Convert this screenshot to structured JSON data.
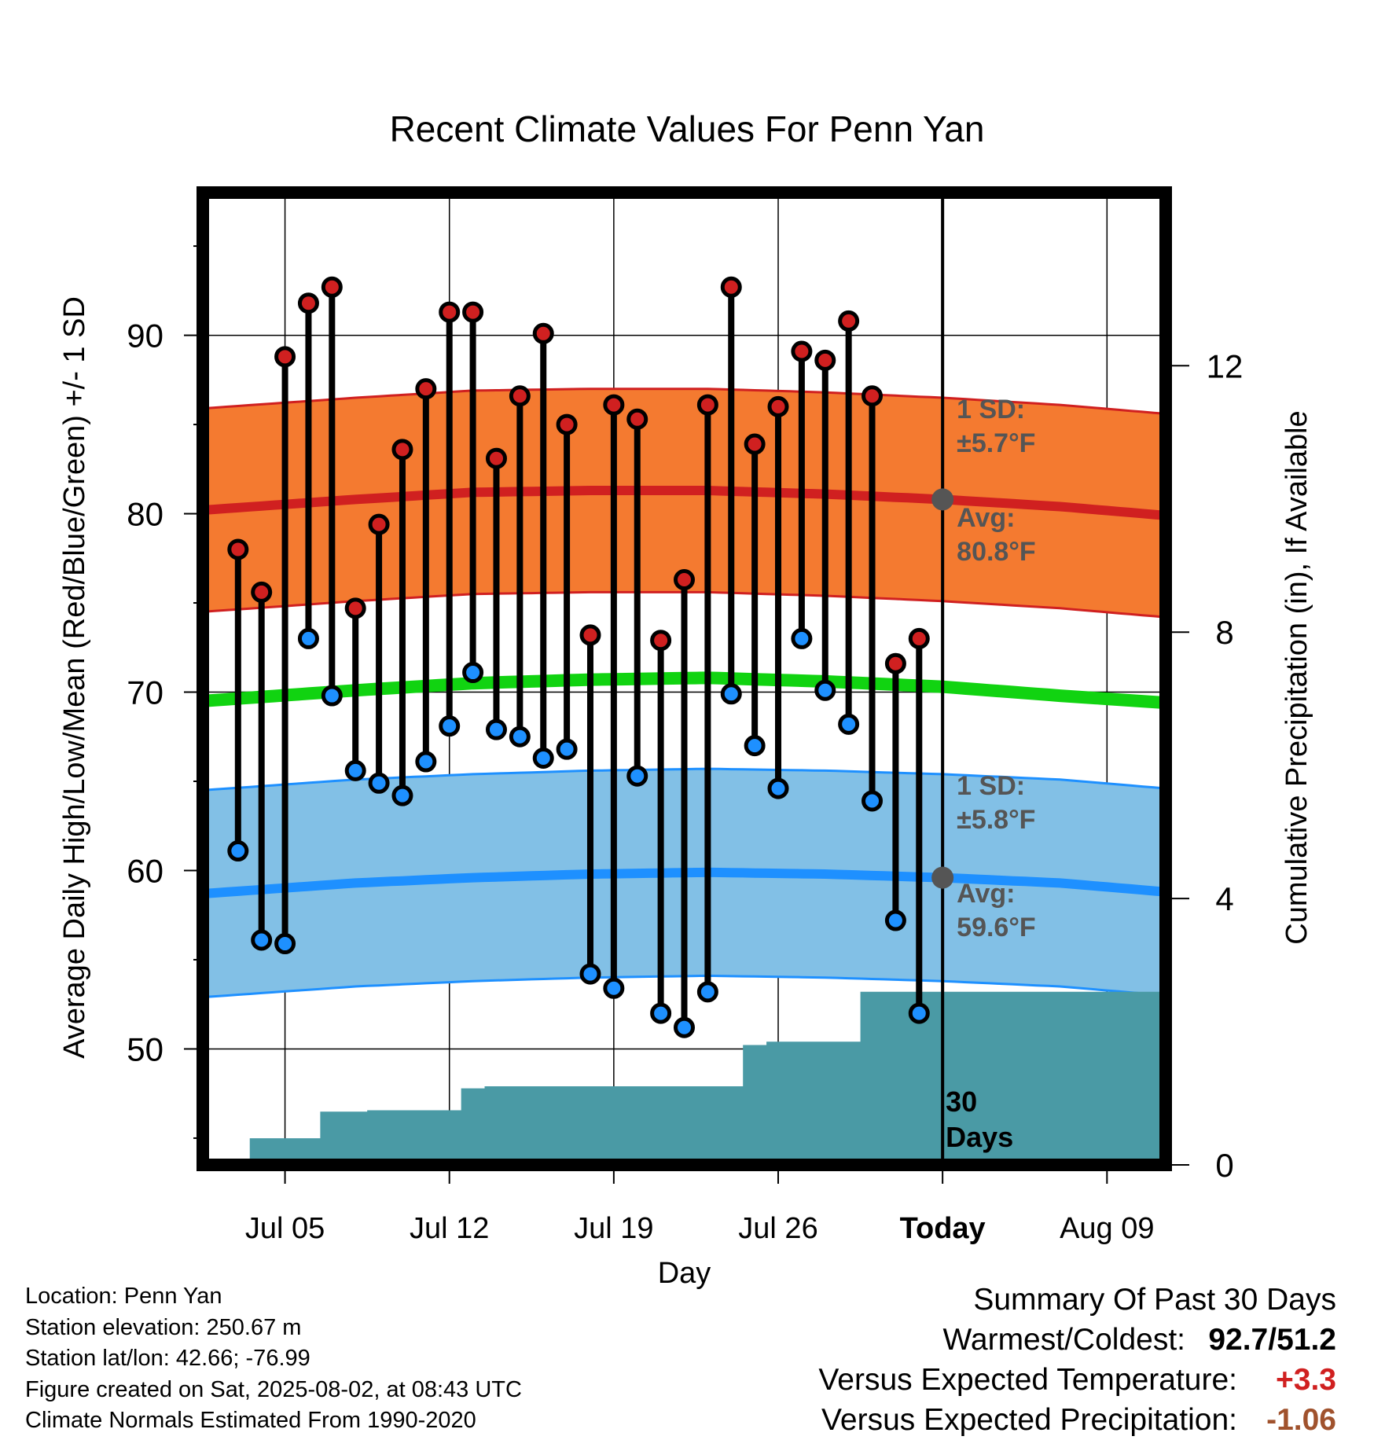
{
  "chart_data": {
    "type": "line",
    "title": "Recent Climate Values For Penn Yan",
    "xlabel": "Day",
    "ylabel": "Average Daily High/Low/Mean (Red/Blue/Green) +/- 1 SD",
    "y2label": "Cumulative Precipitation (in), If Available",
    "x_ticks": [
      "Jul 05",
      "Jul 12",
      "Jul 19",
      "Jul 26",
      "Today",
      "Aug 09"
    ],
    "y_ticks": [
      50,
      60,
      70,
      80,
      90
    ],
    "y2_ticks": [
      0,
      4,
      8,
      12
    ],
    "ylim": [
      43.5,
      98
    ],
    "y2lim": [
      0,
      14.6
    ],
    "x_range_days": [
      -31.5,
      9.5
    ],
    "grid": true,
    "today_marker": true,
    "days_from_today": [
      -30,
      -29,
      -28,
      -27,
      -26,
      -25,
      -24,
      -23,
      -22,
      -21,
      -20,
      -19,
      -18,
      -17,
      -16,
      -15,
      -14,
      -13,
      -12,
      -11,
      -10,
      -9,
      -8,
      -7,
      -6,
      -5,
      -4,
      -3,
      -2,
      -1
    ],
    "series": [
      {
        "name": "High",
        "color": "#d02020",
        "values": [
          78.0,
          75.6,
          88.8,
          91.8,
          92.7,
          74.7,
          79.4,
          83.6,
          87.0,
          91.3,
          91.3,
          83.1,
          86.6,
          90.1,
          85.0,
          73.2,
          86.1,
          85.3,
          72.9,
          76.3,
          86.1,
          92.7,
          83.9,
          86.0,
          89.1,
          88.6,
          90.8,
          86.6,
          71.6,
          73.0
        ]
      },
      {
        "name": "Low",
        "color": "#1e90ff",
        "values": [
          61.1,
          56.1,
          55.9,
          73.0,
          69.8,
          65.6,
          64.9,
          64.2,
          66.1,
          68.1,
          71.1,
          67.9,
          67.5,
          66.3,
          66.8,
          54.2,
          53.4,
          65.3,
          52.0,
          51.2,
          53.2,
          69.9,
          67.0,
          64.6,
          73.0,
          70.1,
          68.2,
          63.9,
          57.2,
          52.0
        ]
      },
      {
        "name": "Cumulative Precipitation",
        "color": "#4a9aa5",
        "values": [
          0.0,
          0.4,
          0.4,
          0.4,
          0.8,
          0.8,
          0.82,
          0.82,
          0.82,
          0.82,
          1.15,
          1.18,
          1.18,
          1.18,
          1.18,
          1.18,
          1.18,
          1.18,
          1.18,
          1.18,
          1.18,
          1.18,
          1.8,
          1.85,
          1.85,
          1.85,
          1.85,
          2.6,
          2.6,
          2.6
        ]
      }
    ],
    "normals": {
      "days_from_today": [
        -31.5,
        -25,
        -20,
        -15,
        -10,
        -5,
        0,
        5,
        9.5
      ],
      "high_mean": [
        80.2,
        80.8,
        81.2,
        81.3,
        81.3,
        81.1,
        80.8,
        80.4,
        79.9
      ],
      "high_sd": 5.7,
      "low_mean": [
        58.7,
        59.3,
        59.6,
        59.8,
        59.9,
        59.8,
        59.6,
        59.3,
        58.8
      ],
      "low_sd": 5.8,
      "mean": [
        69.5,
        70.1,
        70.5,
        70.7,
        70.8,
        70.6,
        70.3,
        69.8,
        69.4
      ],
      "colors": {
        "high_band": "#f47a30",
        "high_line": "#d02020",
        "low_band": "#82c0e6",
        "low_line": "#1e90ff",
        "mean_line": "#11d311",
        "precip": "#4a9aa5"
      }
    },
    "annotations": {
      "high_sd_label": "1 SD:",
      "high_sd_value": "±5.7°F",
      "high_avg_label": "Avg:",
      "high_avg_value": "80.8°F",
      "low_sd_label": "1 SD:",
      "low_sd_value": "±5.8°F",
      "low_avg_label": "Avg:",
      "low_avg_value": "59.6°F",
      "precip_label_1": "30",
      "precip_label_2": "Days",
      "today_high_avg": 80.8,
      "today_low_avg": 59.6
    }
  },
  "info": {
    "location": "Location: Penn Yan",
    "elevation": "Station elevation: 250.67 m",
    "latlon": "Station lat/lon: 42.66; -76.99",
    "created": "Figure created on Sat, 2025-08-02, at 08:43 UTC",
    "normals": "Climate Normals Estimated From 1990-2020"
  },
  "summary": {
    "heading": "Summary Of Past 30 Days",
    "warm_cold_label": "Warmest/Coldest:",
    "warm_cold_value": "92.7/51.2",
    "temp_label": "Versus Expected Temperature:",
    "temp_value": "+3.3",
    "temp_color": "#d02020",
    "precip_label": "Versus Expected Precipitation:",
    "precip_value": "-1.06",
    "precip_color": "#a0522d"
  }
}
